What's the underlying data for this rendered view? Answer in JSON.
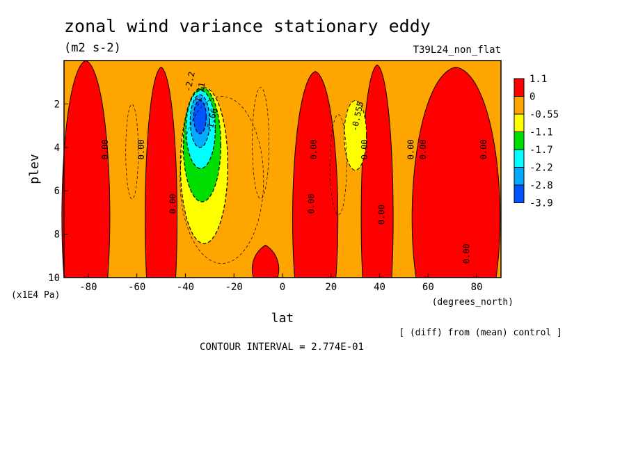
{
  "chart_data": {
    "type": "heatmap",
    "title": "zonal wind variance stationary eddy",
    "subtitle": "(m2 s-2)",
    "run_label": "T39L24_non_flat",
    "xlabel": "lat",
    "x_units": "(degrees_north)",
    "ylabel": "plev",
    "y_units": "(x1E4 Pa)",
    "xlim": [
      -90,
      90
    ],
    "ylim": [
      10,
      0
    ],
    "x_ticks": [
      -80,
      -60,
      -40,
      -20,
      0,
      20,
      40,
      60,
      80
    ],
    "y_ticks": [
      2,
      4,
      6,
      8,
      10
    ],
    "colorbar": {
      "labels": [
        "1.1",
        "0",
        "-0.55",
        "-1.1",
        "-1.7",
        "-2.2",
        "-2.8",
        "-3.9"
      ],
      "colors": [
        "#ff0000",
        "#ffa500",
        "#ffff00",
        "#00dd00",
        "#00ffff",
        "#00aaff",
        "#0055ff"
      ]
    },
    "contour_labels": [
      "0.00",
      "-0.555",
      "-1.11",
      "-1.66",
      "-2.2"
    ],
    "footnote_diff": "[ (diff) from (mean) control ]",
    "contour_interval": "CONTOUR INTERVAL = 2.774E-01",
    "bands": [
      {
        "lon": -80,
        "lat_from": -90,
        "lat_to": -72,
        "level_top": 0.0,
        "level_bot": 10,
        "value": 0.4
      },
      {
        "lon": -48,
        "lat_from": -56,
        "lat_to": -44,
        "level_top": 0.3,
        "level_bot": 10,
        "value": 0.4
      },
      {
        "lon": -8,
        "lat_from": -12,
        "lat_to": -2,
        "level_top": 8.5,
        "level_bot": 10,
        "value": 0.3
      },
      {
        "lon": 14,
        "lat_from": 5,
        "lat_to": 22,
        "level_top": 0.5,
        "level_bot": 10,
        "value": 0.4
      },
      {
        "lon": 38,
        "lat_from": 33,
        "lat_to": 45,
        "level_top": 0.2,
        "level_bot": 10,
        "value": 0.4
      },
      {
        "lon": 72,
        "lat_from": 55,
        "lat_to": 88,
        "level_top": 0.3,
        "level_bot": 10,
        "value": 0.4
      }
    ],
    "minimum": {
      "lat": -34,
      "plev": 2.6,
      "value": -3.9
    },
    "secondary_minimum": {
      "lat": 30,
      "plev": 3.0,
      "value": -0.8
    }
  }
}
